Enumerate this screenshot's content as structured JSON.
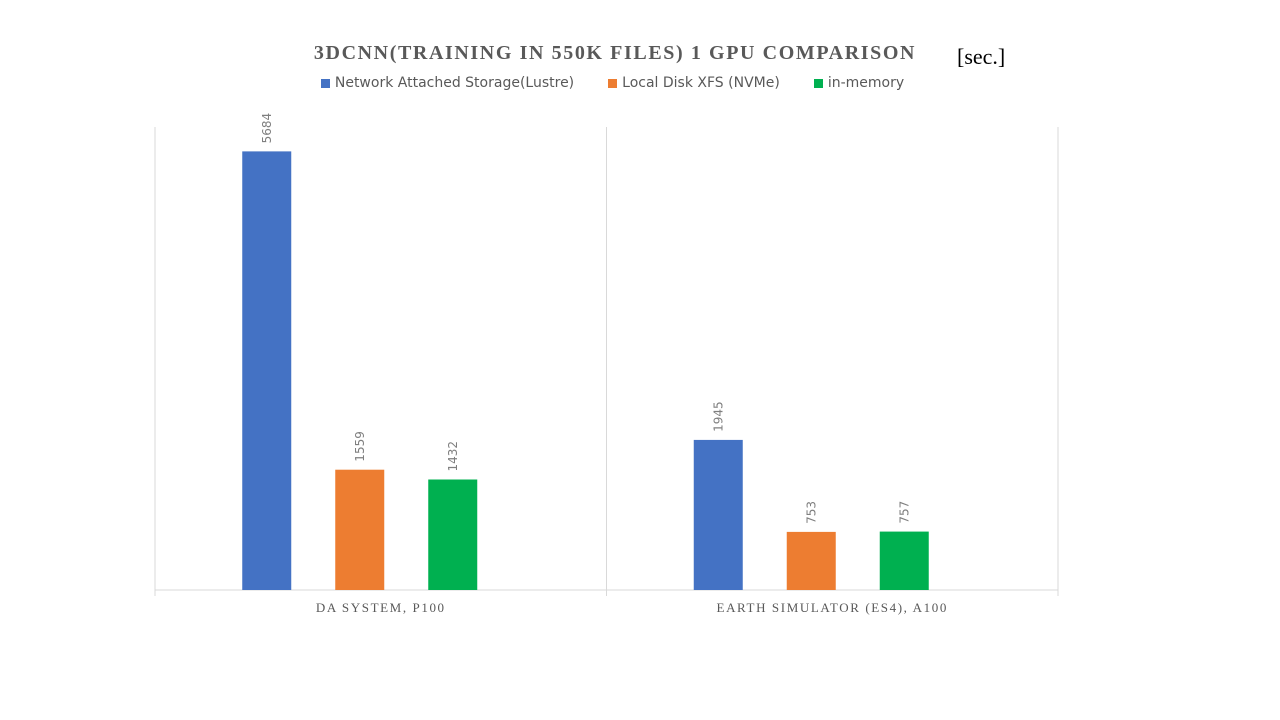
{
  "chart_title": "3DCNN(TRAINING IN 550K FILES) 1 GPU COMPARISON",
  "unit_label": "[sec.]",
  "colors": {
    "nas": "#4472C4",
    "local": "#ED7D31",
    "memory": "#00B050",
    "axis": "#D9D9D9",
    "label": "#595959"
  },
  "chart_data": {
    "type": "bar",
    "title": "3DCNN(TRAINING IN 550K FILES) 1 GPU COMPARISON",
    "ylabel": "[sec.]",
    "categories": [
      "DA SYSTEM, P100",
      "EARTH SIMULATOR (ES4), A100"
    ],
    "series": [
      {
        "name": "Network Attached Storage(Lustre)",
        "values": [
          5684,
          1945
        ]
      },
      {
        "name": "Local Disk XFS (NVMe)",
        "values": [
          1559,
          753
        ]
      },
      {
        "name": "in-memory",
        "values": [
          1432,
          757
        ]
      }
    ],
    "ylim": [
      0,
      6000
    ],
    "grid": false,
    "legend": "top-center",
    "data_labels": true
  }
}
